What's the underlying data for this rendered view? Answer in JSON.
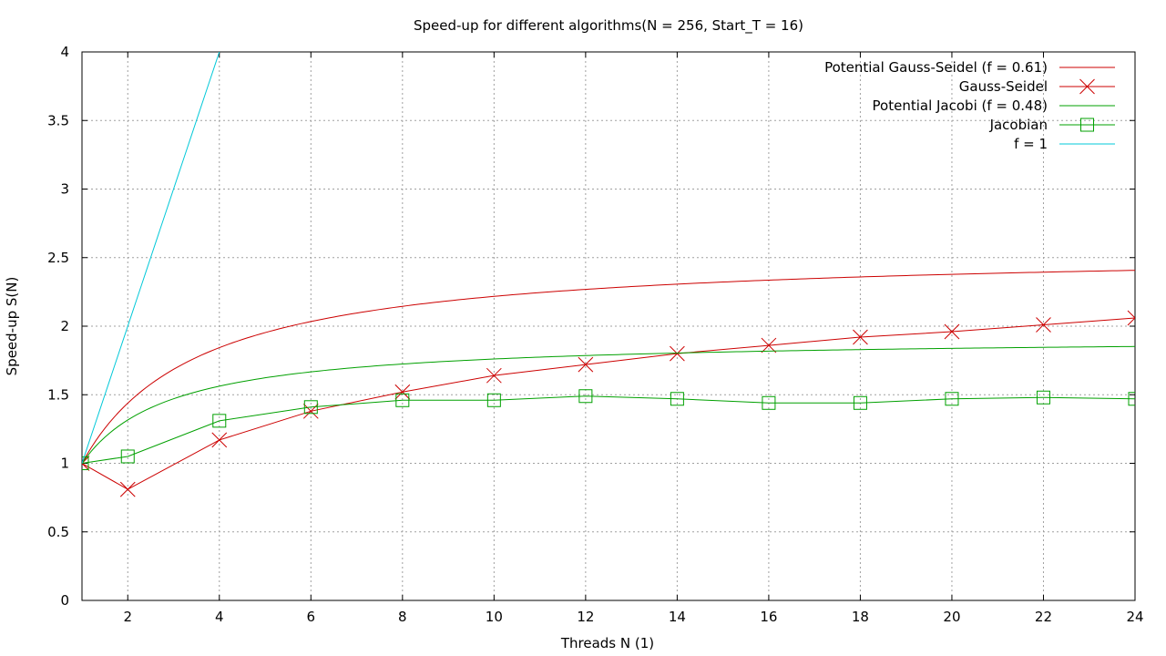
{
  "chart_data": {
    "type": "line",
    "title": "Speed-up for different algorithms(N = 256, Start_T = 16)",
    "xlabel": "Threads N (1)",
    "ylabel": "Speed-up S(N)",
    "xlim": [
      1,
      24
    ],
    "ylim": [
      0,
      4
    ],
    "xticks": [
      2,
      4,
      6,
      8,
      10,
      12,
      14,
      16,
      18,
      20,
      22,
      24
    ],
    "yticks": [
      0,
      0.5,
      1,
      1.5,
      2,
      2.5,
      3,
      3.5,
      4
    ],
    "ytick_labels": [
      "0",
      "0.5",
      "1",
      "1.5",
      "2",
      "2.5",
      "3",
      "3.5",
      "4"
    ],
    "grid": true,
    "legend_position": "top-right",
    "series": [
      {
        "name": "Potential Gauss-Seidel (f = 0.61)",
        "kind": "amdahl",
        "f": 0.61,
        "color": "#cc0000",
        "marker": "none"
      },
      {
        "name": "Gauss-Seidel",
        "kind": "points",
        "color": "#cc0000",
        "marker": "x",
        "x": [
          1,
          2,
          4,
          6,
          8,
          10,
          12,
          14,
          16,
          18,
          20,
          22,
          24
        ],
        "y": [
          1.0,
          0.81,
          1.17,
          1.38,
          1.52,
          1.64,
          1.72,
          1.8,
          1.86,
          1.92,
          1.96,
          2.01,
          2.06
        ]
      },
      {
        "name": "Potential Jacobi (f = 0.48)",
        "kind": "amdahl",
        "f": 0.48,
        "color": "#00a000",
        "marker": "none"
      },
      {
        "name": "Jacobian",
        "kind": "points",
        "color": "#00a000",
        "marker": "square",
        "x": [
          1,
          2,
          4,
          6,
          8,
          10,
          12,
          14,
          16,
          18,
          20,
          22,
          24
        ],
        "y": [
          1.0,
          1.05,
          1.31,
          1.41,
          1.46,
          1.46,
          1.49,
          1.47,
          1.44,
          1.44,
          1.47,
          1.48,
          1.47
        ]
      },
      {
        "name": "f = 1",
        "kind": "amdahl",
        "f": 1,
        "color": "#00c8d8",
        "marker": "none"
      }
    ]
  }
}
